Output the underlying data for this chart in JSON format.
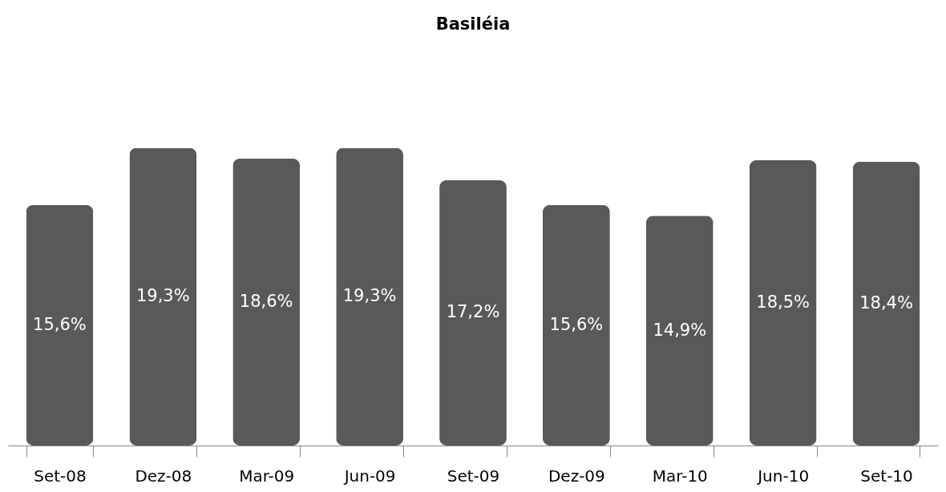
{
  "chart_data": {
    "type": "bar",
    "title": "Basiléia",
    "categories": [
      "Set-08",
      "Dez-08",
      "Mar-09",
      "Jun-09",
      "Set-09",
      "Dez-09",
      "Mar-10",
      "Jun-10",
      "Set-10"
    ],
    "values": [
      15.6,
      19.3,
      18.6,
      19.3,
      17.2,
      15.6,
      14.9,
      18.5,
      18.4
    ],
    "value_labels": [
      "15,6%",
      "19,3%",
      "18,6%",
      "19,3%",
      "17,2%",
      "15,6%",
      "14,9%",
      "18,5%",
      "18,4%"
    ],
    "color": "#595959",
    "grid": false
  }
}
